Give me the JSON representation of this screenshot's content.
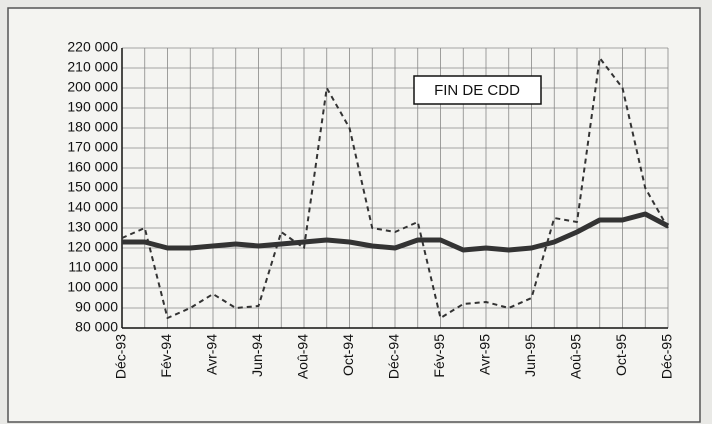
{
  "chart_data": {
    "type": "line",
    "annotation": "FIN DE CDD",
    "categories": [
      "Déc-93",
      null,
      "Fév-94",
      null,
      "Avr-94",
      null,
      "Jun-94",
      null,
      "Aoû-94",
      null,
      "Oct-94",
      null,
      "Déc-94",
      null,
      "Fév-95",
      null,
      "Avr-95",
      null,
      "Jun-95",
      null,
      "Aoû-95",
      null,
      "Oct-95",
      null,
      "Déc-95"
    ],
    "series": [
      {
        "color": "#333333",
        "dash": true,
        "values": [
          125000,
          130000,
          85000,
          90000,
          97000,
          90000,
          91000,
          128000,
          120000,
          200000,
          180000,
          130000,
          128000,
          133000,
          85000,
          92000,
          93000,
          90000,
          95000,
          135000,
          133000,
          215000,
          200000,
          150000,
          130000
        ]
      },
      {
        "color": "#333333",
        "dash": false,
        "values": [
          123000,
          123000,
          120000,
          120000,
          121000,
          122000,
          121000,
          122000,
          123000,
          124000,
          123000,
          121000,
          120000,
          124000,
          124000,
          119000,
          120000,
          119000,
          120000,
          123000,
          128000,
          134000,
          134000,
          137000,
          131000
        ]
      }
    ],
    "ylim": [
      80000,
      220000
    ],
    "yticks": [
      {
        "value": 80000,
        "label": "80 000"
      },
      {
        "value": 90000,
        "label": "90 000"
      },
      {
        "value": 100000,
        "label": "100 000"
      },
      {
        "value": 110000,
        "label": "110 000"
      },
      {
        "value": 120000,
        "label": "120 000"
      },
      {
        "value": 130000,
        "label": "130 000"
      },
      {
        "value": 140000,
        "label": "140 000"
      },
      {
        "value": 150000,
        "label": "150 000"
      },
      {
        "value": 160000,
        "label": "160 000"
      },
      {
        "value": 170000,
        "label": "170 000"
      },
      {
        "value": 180000,
        "label": "180 000"
      },
      {
        "value": 190000,
        "label": "190 000"
      },
      {
        "value": 200000,
        "label": "200 000"
      },
      {
        "value": 210000,
        "label": "210 000"
      },
      {
        "value": 220000,
        "label": "220 000"
      }
    ],
    "grid": true
  }
}
